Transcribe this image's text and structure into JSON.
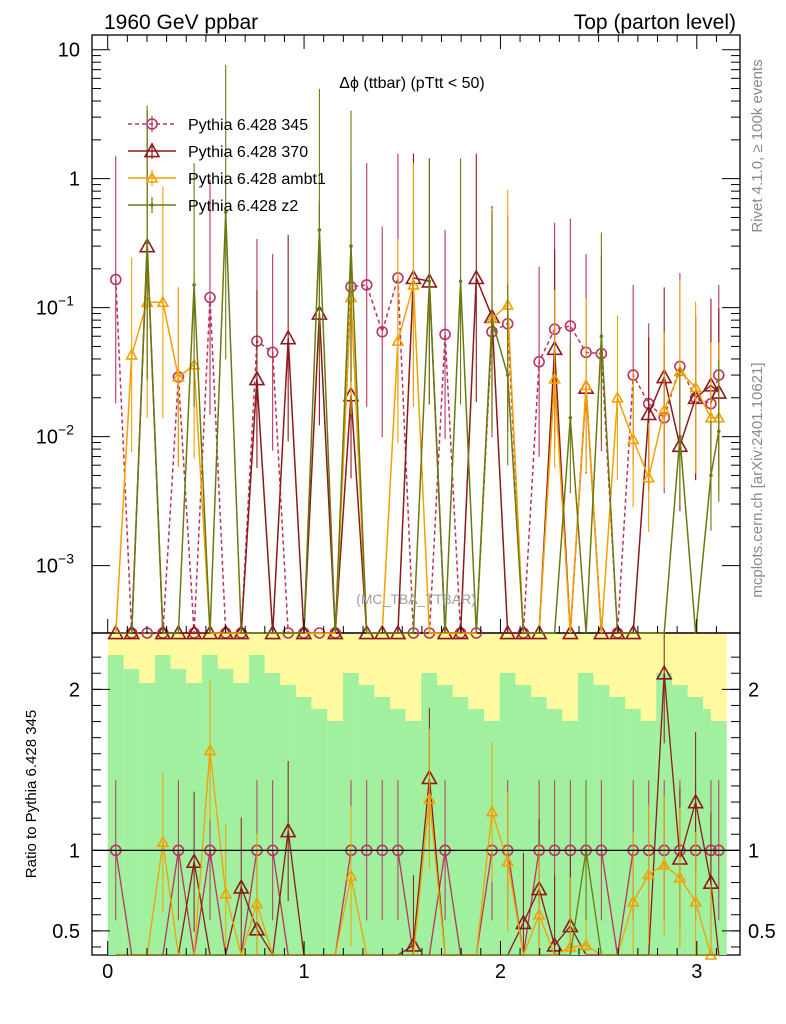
{
  "header": {
    "left": "1960 GeV ppbar",
    "right": "Top (parton level)"
  },
  "side_text": {
    "rivet": "Rivet 4.1.0, ≥ 100k events",
    "mcplots": "mcplots.cern.ch [arXiv:2401.10621]"
  },
  "watermark": "(MC_TBA_TTBAR)",
  "chart_data": {
    "type": "line",
    "title": "Δϕ (ttbar) (pTtt < 50)",
    "xlabel": "",
    "ylabel": "",
    "ratio_ylabel": "Ratio to Pythia 6.428 345",
    "xlim": [
      -0.08,
      3.22
    ],
    "ylim_log": [
      0.0003,
      13
    ],
    "ratio_ylim": [
      0.35,
      2.35
    ],
    "x_ticks": [
      "0",
      "1",
      "2",
      "3"
    ],
    "y_ticks": [
      "10^-3",
      "10^-2",
      "10^-1",
      "1",
      "10"
    ],
    "ratio_ticks": [
      "0.5",
      "1",
      "2"
    ],
    "grid": false,
    "legend_position": "top-left",
    "x": [
      0.041,
      0.122,
      0.201,
      0.281,
      0.36,
      0.44,
      0.521,
      0.601,
      0.68,
      0.76,
      0.84,
      0.919,
      0.999,
      1.078,
      1.159,
      1.239,
      1.319,
      1.398,
      1.478,
      1.557,
      1.638,
      1.718,
      1.797,
      1.877,
      1.957,
      2.037,
      2.117,
      2.197,
      2.276,
      2.356,
      2.436,
      2.514,
      2.596,
      2.676,
      2.755,
      2.834,
      2.914,
      2.994,
      3.072,
      3.112
    ],
    "series": [
      {
        "name": "Pythia 6.428 345",
        "color": "#b83560",
        "dash": true,
        "marker": "circle",
        "values": [
          0.165,
          0,
          0,
          0,
          0.029,
          0,
          0.12,
          0,
          0,
          0.055,
          0.045,
          0,
          0,
          0,
          0,
          0.145,
          0.15,
          0.065,
          0.17,
          0,
          0,
          0.062,
          0,
          0,
          0.065,
          0.075,
          0,
          0.038,
          0.068,
          0.072,
          0.045,
          0.044,
          0,
          0.03,
          0.018,
          0.014,
          0.035,
          0.02,
          0.018,
          0.03
        ],
        "ratio": [
          1,
          null,
          null,
          null,
          1,
          null,
          1,
          null,
          null,
          1,
          1,
          null,
          null,
          null,
          null,
          1,
          1,
          1,
          1,
          null,
          null,
          1,
          null,
          null,
          1,
          1,
          null,
          1,
          1,
          1,
          1,
          1,
          null,
          1,
          1,
          1,
          1,
          1,
          1,
          1
        ]
      },
      {
        "name": "Pythia 6.428 370",
        "color": "#8b1a1a",
        "dash": false,
        "marker": "triangle",
        "values": [
          0,
          0,
          0.3,
          0,
          0,
          0,
          0,
          0,
          0,
          0.028,
          0,
          0.058,
          0,
          0.09,
          0,
          0.021,
          0,
          0,
          0,
          0.17,
          0.16,
          0,
          0,
          0.17,
          0.085,
          0,
          0,
          0,
          0.048,
          0,
          0.024,
          0,
          0,
          0,
          0.015,
          0.029,
          0.0085,
          0.02,
          0.025,
          0.022
        ],
        "ratio": [
          null,
          null,
          null,
          null,
          null,
          0.93,
          null,
          null,
          0.77,
          0.51,
          null,
          1.12,
          null,
          null,
          null,
          null,
          null,
          null,
          null,
          0.41,
          1.45,
          null,
          null,
          null,
          null,
          null,
          0.55,
          0.76,
          0.41,
          0.53,
          null,
          null,
          null,
          null,
          null,
          2.1,
          0.95,
          1.3,
          0.8,
          null
        ]
      },
      {
        "name": "Pythia 6.428 ambt1",
        "color": "#f5a000",
        "dash": false,
        "marker": "triangle",
        "values": [
          0,
          0.043,
          0.11,
          0.11,
          0.029,
          0.036,
          0,
          0,
          0,
          0,
          0,
          0,
          0,
          0,
          0,
          0.12,
          0,
          0,
          0.055,
          0.15,
          0,
          0,
          0,
          0,
          0.082,
          0.105,
          0,
          0,
          0.028,
          0,
          0.025,
          0,
          0.02,
          0.0095,
          0.0048,
          0.016,
          0.032,
          0.024,
          0.014,
          0.014
        ],
        "ratio": [
          null,
          null,
          null,
          1.05,
          null,
          null,
          1.62,
          0.73,
          null,
          0.67,
          null,
          null,
          null,
          null,
          null,
          0.84,
          null,
          null,
          null,
          null,
          1.32,
          null,
          null,
          null,
          1.24,
          0.93,
          null,
          0.6,
          null,
          0.4,
          0.41,
          null,
          null,
          0.68,
          0.85,
          0.91,
          0.83,
          0.68,
          0.31,
          null
        ]
      },
      {
        "name": "Pythia 6.428 z2",
        "color": "#6b7a10",
        "dash": false,
        "marker": "dot",
        "values": [
          0,
          0,
          0.32,
          0,
          0,
          0.15,
          0,
          0.55,
          0,
          0,
          0,
          0,
          0,
          0.4,
          0,
          0.3,
          0,
          0,
          0,
          0,
          0.16,
          0,
          0.16,
          0,
          0.08,
          0.03,
          0,
          0,
          0,
          0.014,
          0,
          0.06,
          0,
          0,
          0,
          0,
          0.01,
          0,
          0.005,
          0.011
        ],
        "ratio": [
          null,
          null,
          null,
          null,
          null,
          null,
          null,
          null,
          null,
          null,
          null,
          null,
          null,
          null,
          null,
          null,
          null,
          null,
          null,
          null,
          null,
          null,
          null,
          null,
          null,
          null,
          null,
          null,
          null,
          null,
          1,
          null,
          null,
          null,
          null,
          null,
          null,
          null,
          null,
          null
        ]
      }
    ]
  }
}
